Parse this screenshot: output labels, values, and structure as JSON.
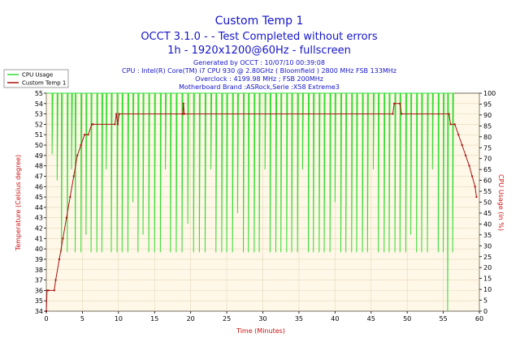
{
  "header": {
    "title": "Custom Temp 1",
    "subtitle": "OCCT 3.1.0 -  - Test Completed without errors",
    "subtitle2": "1h - 1920x1200@60Hz - fullscreen"
  },
  "info": {
    "generated": "Generated by OCCT : 10/07/10 00:39:08",
    "cpu": "CPU : Intel(R) Core(TM) i7 CPU 930 @ 2.80GHz ( Bloomfield ) 2800 MHz FSB 133MHz",
    "overclock": "Overclock : 4199.98 MHz ; FSB 200MHz",
    "motherboard": "Motherboard Brand :ASRock,Serie :X58 Extreme3"
  },
  "colors": {
    "background": "#fff8e8",
    "cpu_series": "#33dd33",
    "temp_series": "#aa1111",
    "axis_label": "#cc1111",
    "title": "#1515c8",
    "grid": "#e6d6b8"
  },
  "chart_data": {
    "type": "line",
    "xlabel": "Time (Minutes)",
    "ylabel": "Temperature (Celsius degree)",
    "y2label": "CPU Usage (in %)",
    "xlim": [
      0,
      60
    ],
    "ylim": [
      34,
      55
    ],
    "y2lim": [
      0,
      100
    ],
    "x_ticks": [
      0,
      5,
      10,
      15,
      20,
      25,
      30,
      35,
      40,
      45,
      50,
      55,
      60
    ],
    "y_ticks": [
      34,
      35,
      36,
      37,
      38,
      39,
      40,
      41,
      42,
      43,
      44,
      45,
      46,
      47,
      48,
      49,
      50,
      51,
      52,
      53,
      54,
      55
    ],
    "y2_ticks": [
      0,
      5,
      10,
      15,
      20,
      25,
      30,
      35,
      40,
      45,
      50,
      55,
      60,
      65,
      70,
      75,
      80,
      85,
      90,
      95,
      100
    ],
    "grid": true,
    "legend_position": "top-left",
    "series": [
      {
        "name": "CPU Usage",
        "axis": "right",
        "baseline": 100,
        "dips": [
          {
            "x": 0.8,
            "y": 72
          },
          {
            "x": 1.5,
            "y": 60
          },
          {
            "x": 2.1,
            "y": 27
          },
          {
            "x": 2.9,
            "y": 27
          },
          {
            "x": 3.5,
            "y": 65
          },
          {
            "x": 4.0,
            "y": 27
          },
          {
            "x": 4.8,
            "y": 27
          },
          {
            "x": 5.5,
            "y": 35
          },
          {
            "x": 6.2,
            "y": 27
          },
          {
            "x": 7.0,
            "y": 27
          },
          {
            "x": 7.7,
            "y": 27
          },
          {
            "x": 8.3,
            "y": 65
          },
          {
            "x": 9.0,
            "y": 27
          },
          {
            "x": 9.8,
            "y": 27
          },
          {
            "x": 10.5,
            "y": 27
          },
          {
            "x": 11.3,
            "y": 27
          },
          {
            "x": 12.0,
            "y": 50
          },
          {
            "x": 12.7,
            "y": 27
          },
          {
            "x": 13.4,
            "y": 35
          },
          {
            "x": 14.2,
            "y": 27
          },
          {
            "x": 15.0,
            "y": 27
          },
          {
            "x": 15.8,
            "y": 27
          },
          {
            "x": 16.5,
            "y": 65
          },
          {
            "x": 17.2,
            "y": 27
          },
          {
            "x": 18.0,
            "y": 27
          },
          {
            "x": 18.8,
            "y": 27
          },
          {
            "x": 19.6,
            "y": 40
          },
          {
            "x": 20.4,
            "y": 27
          },
          {
            "x": 21.2,
            "y": 27
          },
          {
            "x": 22.0,
            "y": 27
          },
          {
            "x": 22.8,
            "y": 65
          },
          {
            "x": 23.5,
            "y": 27
          },
          {
            "x": 24.3,
            "y": 27
          },
          {
            "x": 25.0,
            "y": 27
          },
          {
            "x": 25.8,
            "y": 27
          },
          {
            "x": 26.5,
            "y": 45
          },
          {
            "x": 27.3,
            "y": 27
          },
          {
            "x": 28.0,
            "y": 27
          },
          {
            "x": 28.8,
            "y": 27
          },
          {
            "x": 29.5,
            "y": 27
          },
          {
            "x": 30.3,
            "y": 65
          },
          {
            "x": 31.0,
            "y": 27
          },
          {
            "x": 31.8,
            "y": 27
          },
          {
            "x": 32.5,
            "y": 27
          },
          {
            "x": 33.3,
            "y": 27
          },
          {
            "x": 34.0,
            "y": 27
          },
          {
            "x": 34.8,
            "y": 27
          },
          {
            "x": 35.5,
            "y": 65
          },
          {
            "x": 36.3,
            "y": 27
          },
          {
            "x": 37.0,
            "y": 27
          },
          {
            "x": 37.8,
            "y": 27
          },
          {
            "x": 38.5,
            "y": 27
          },
          {
            "x": 39.3,
            "y": 27
          },
          {
            "x": 40.0,
            "y": 50
          },
          {
            "x": 40.8,
            "y": 27
          },
          {
            "x": 41.5,
            "y": 27
          },
          {
            "x": 42.3,
            "y": 27
          },
          {
            "x": 43.0,
            "y": 27
          },
          {
            "x": 43.8,
            "y": 27
          },
          {
            "x": 44.5,
            "y": 27
          },
          {
            "x": 45.3,
            "y": 65
          },
          {
            "x": 46.0,
            "y": 27
          },
          {
            "x": 46.8,
            "y": 27
          },
          {
            "x": 47.5,
            "y": 27
          },
          {
            "x": 48.3,
            "y": 27
          },
          {
            "x": 49.0,
            "y": 27
          },
          {
            "x": 49.8,
            "y": 27
          },
          {
            "x": 50.5,
            "y": 35
          },
          {
            "x": 51.3,
            "y": 27
          },
          {
            "x": 52.0,
            "y": 27
          },
          {
            "x": 52.8,
            "y": 27
          },
          {
            "x": 53.5,
            "y": 65
          },
          {
            "x": 54.3,
            "y": 27
          },
          {
            "x": 55.0,
            "y": 27
          },
          {
            "x": 55.6,
            "y": 0
          },
          {
            "x": 56.3,
            "y": 27
          }
        ],
        "end_x": 56.5
      },
      {
        "name": "Custom Temp 1",
        "axis": "left",
        "x": [
          0,
          0.1,
          0.3,
          1.1,
          1.3,
          1.8,
          2.3,
          2.8,
          3.3,
          3.8,
          4.3,
          4.8,
          5.3,
          5.8,
          6.3,
          6.5,
          9.5,
          9.7,
          9.9,
          10.1,
          18.9,
          19.0,
          19.1,
          48.0,
          48.2,
          49.0,
          49.2,
          55.8,
          56.0,
          56.6,
          57.1,
          57.6,
          58.1,
          58.6,
          59.0,
          59.4,
          59.6
        ],
        "y": [
          34,
          36,
          36,
          36,
          37,
          39,
          41,
          43,
          45,
          47,
          49,
          50,
          51,
          51,
          52,
          52,
          52,
          53,
          52,
          53,
          53,
          54,
          53,
          53,
          54,
          54,
          53,
          53,
          52,
          52,
          51,
          50,
          49,
          48,
          47,
          46,
          45
        ]
      }
    ]
  }
}
